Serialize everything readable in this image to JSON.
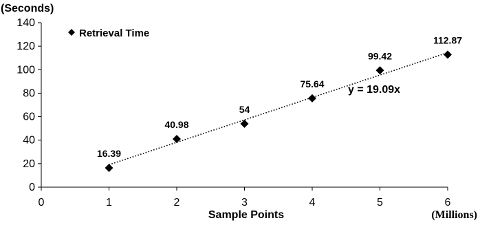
{
  "chart_data": {
    "type": "scatter",
    "ylabel_unit": "(Seconds)",
    "xlabel": "Sample Points",
    "xlabel_unit": "(Millions)",
    "x_ticks": [
      "0",
      "1",
      "2",
      "3",
      "4",
      "5",
      "6"
    ],
    "y_ticks": [
      "0",
      "20",
      "40",
      "60",
      "80",
      "100",
      "120",
      "140"
    ],
    "xlim": [
      0,
      6
    ],
    "ylim": [
      0,
      140
    ],
    "grid": false,
    "legend_position": "top-left",
    "series": [
      {
        "name": "Retrieval Time",
        "marker": "diamond",
        "color": "#000000",
        "x": [
          1,
          2,
          3,
          4,
          5,
          6
        ],
        "y": [
          16.39,
          40.98,
          54,
          75.64,
          99.42,
          112.87
        ],
        "labels": [
          "16.39",
          "40.98",
          "54",
          "75.64",
          "99.42",
          "112.87"
        ]
      }
    ],
    "trendline": {
      "type": "linear",
      "slope": 19.09,
      "intercept": 0,
      "x_range": [
        1,
        6
      ],
      "style": "dotted",
      "equation": "y = 19.09x"
    }
  }
}
